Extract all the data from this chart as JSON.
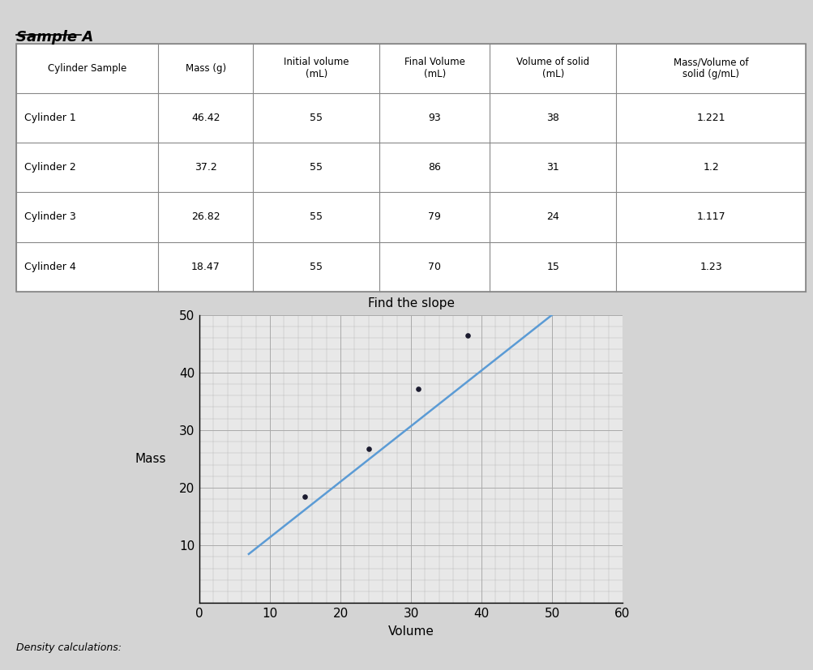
{
  "title": "Sample A",
  "table_headers": [
    "Cylinder Sample",
    "Mass (g)",
    "Initial volume\n(mL)",
    "Final Volume\n(mL)",
    "Volume of solid\n(mL)",
    "Mass/Volume of\nsolid (g/mL)"
  ],
  "table_rows": [
    [
      "Cylinder 1",
      "46.42",
      "55",
      "93",
      "38",
      "1.221"
    ],
    [
      "Cylinder 2",
      "37.2",
      "55",
      "86",
      "31",
      "1.2"
    ],
    [
      "Cylinder 3",
      "26.82",
      "55",
      "79",
      "24",
      "1.117"
    ],
    [
      "Cylinder 4",
      "18.47",
      "55",
      "70",
      "15",
      "1.23"
    ]
  ],
  "graph_title": "Find the slope",
  "xlabel": "Volume",
  "ylabel": "Mass",
  "xlim": [
    0,
    60
  ],
  "ylim": [
    0,
    50
  ],
  "xticks": [
    0,
    10,
    20,
    30,
    40,
    50,
    60
  ],
  "yticks": [
    10,
    20,
    30,
    40,
    50
  ],
  "scatter_x": [
    15,
    24,
    31,
    38
  ],
  "scatter_y": [
    18.47,
    26.82,
    37.2,
    46.42
  ],
  "line_x": [
    7,
    50
  ],
  "line_y": [
    8.5,
    50
  ],
  "line_color": "#5b9bd5",
  "scatter_color": "#1a1a2e",
  "bg_color": "#e8e8e8",
  "grid_color": "#aaaaaa",
  "footer_text": "Density calculations:",
  "col_widths": [
    0.18,
    0.12,
    0.16,
    0.14,
    0.16,
    0.24
  ]
}
